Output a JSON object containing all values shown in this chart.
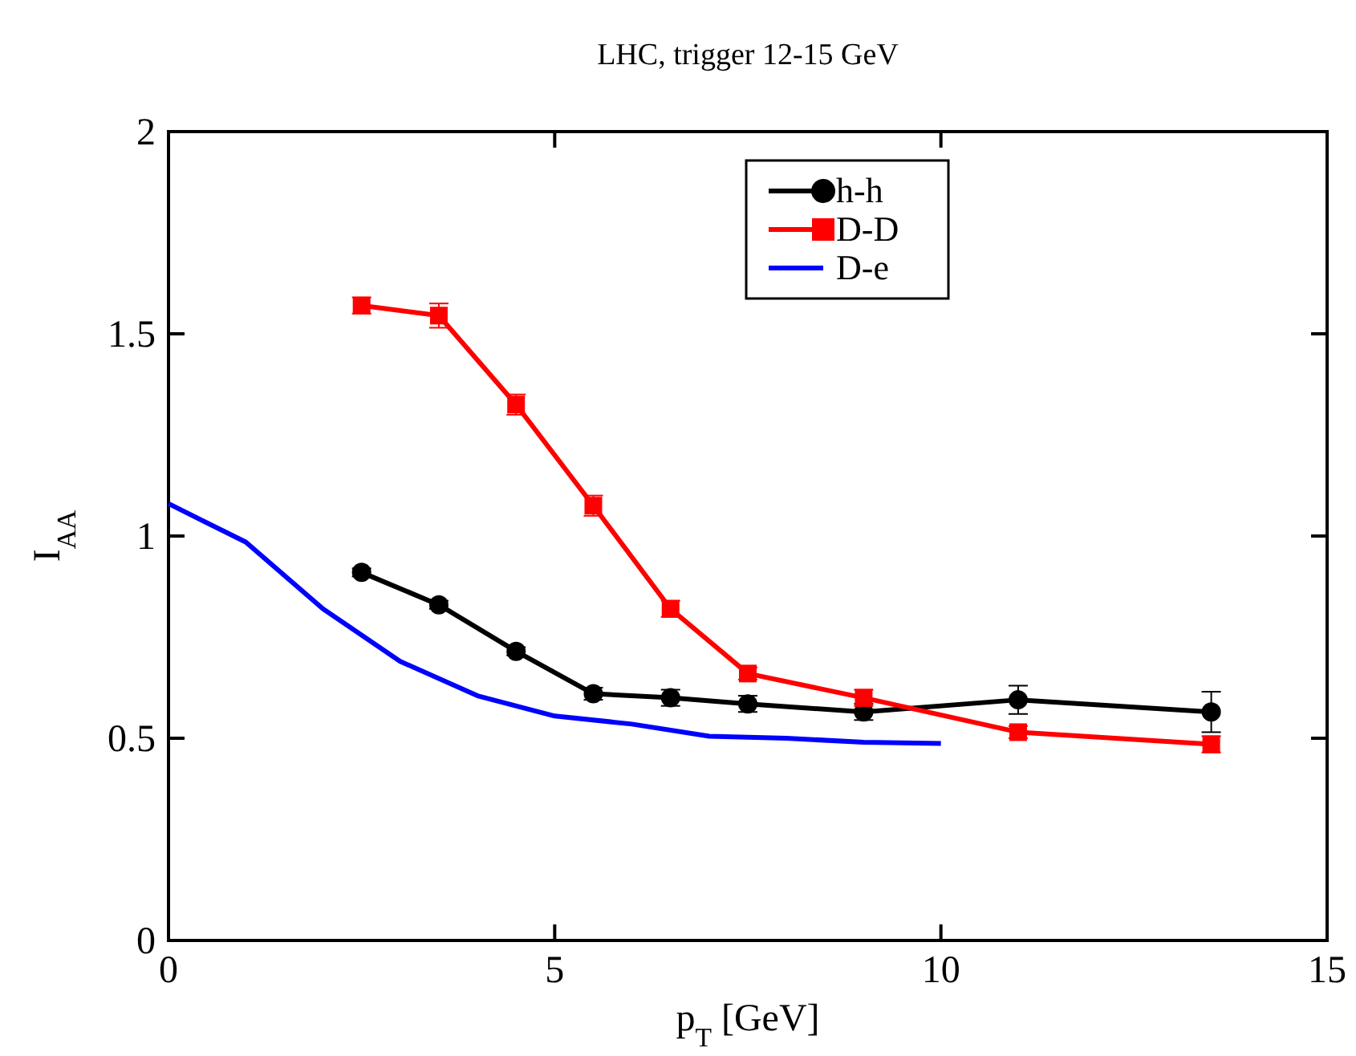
{
  "chart_data": {
    "type": "line",
    "title": "LHC, trigger 12-15 GeV",
    "xlabel": "p$_{T}$ [GeV]",
    "ylabel": "I$_{AA}$",
    "xlim": [
      0,
      15
    ],
    "xticks": [
      0,
      5,
      10,
      15
    ],
    "ylim": [
      0,
      2
    ],
    "yticks": [
      0,
      0.5,
      1,
      1.5,
      2
    ],
    "grid": false,
    "legend": "top",
    "series": [
      {
        "name": "h-h",
        "color": "#000000",
        "marker": "circle",
        "x": [
          2.5,
          3.5,
          4.5,
          5.5,
          6.5,
          7.5,
          9,
          11,
          13.5
        ],
        "values": [
          0.91,
          0.83,
          0.715,
          0.61,
          0.6,
          0.585,
          0.565,
          0.595,
          0.565
        ],
        "errors": [
          0.01,
          0.01,
          0.01,
          0.015,
          0.02,
          0.02,
          0.02,
          0.035,
          0.05
        ]
      },
      {
        "name": "D-D",
        "color": "#ff0000",
        "marker": "square",
        "x": [
          2.5,
          3.5,
          4.5,
          5.5,
          6.5,
          7.5,
          9,
          11,
          13.5
        ],
        "values": [
          1.57,
          1.545,
          1.325,
          1.075,
          0.82,
          0.66,
          0.6,
          0.515,
          0.485
        ],
        "errors": [
          0.02,
          0.03,
          0.025,
          0.025,
          0.02,
          0.015,
          0.02,
          0.015,
          0.02
        ]
      },
      {
        "name": "D-e",
        "color": "#0000ff",
        "marker": "none",
        "x": [
          0,
          1,
          2,
          3,
          4,
          5,
          6,
          7,
          8,
          9,
          10
        ],
        "values": [
          1.08,
          0.985,
          0.82,
          0.69,
          0.605,
          0.555,
          0.535,
          0.505,
          0.5,
          0.49,
          0.487
        ]
      }
    ]
  }
}
